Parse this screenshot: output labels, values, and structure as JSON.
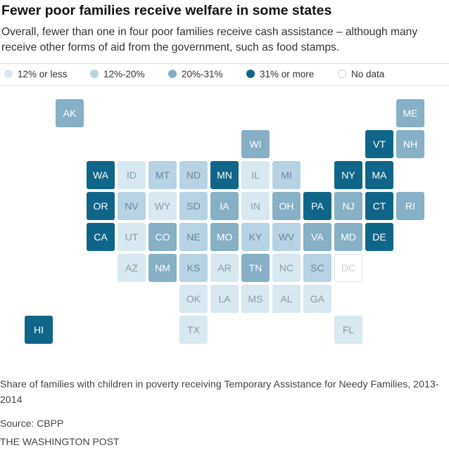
{
  "title": "Fewer poor families receive welfare in some states",
  "subtitle": "Overall, fewer than one in four poor families receive cash assistance – although many receive other forms of aid from the government, such as food stamps.",
  "note": "Share of families with children in poverty receiving Temporary Assistance for Needy Families, 2013-2014",
  "source": "Source: CBPP",
  "credit": "THE WASHINGTON POST",
  "chart_data": {
    "type": "heatmap",
    "title": "Fewer poor families receive welfare in some states",
    "legend": {
      "placement": "top",
      "items": [
        {
          "key": "lt12",
          "label": "12% or less",
          "color": "#d7e8f1"
        },
        {
          "key": "12to20",
          "label": "12%-20%",
          "color": "#b6d3e3"
        },
        {
          "key": "20to31",
          "label": "20%-31%",
          "color": "#85b0c6"
        },
        {
          "key": "gt31",
          "label": "31% or more",
          "color": "#0f6688"
        },
        {
          "key": "nodata",
          "label": "No data",
          "color": "#ffffff"
        }
      ]
    },
    "states": [
      {
        "abbr": "AK",
        "col": 2,
        "row": 0,
        "bin": "20to31"
      },
      {
        "abbr": "ME",
        "col": 13,
        "row": 0,
        "bin": "20to31"
      },
      {
        "abbr": "WI",
        "col": 8,
        "row": 1,
        "bin": "20to31"
      },
      {
        "abbr": "VT",
        "col": 12,
        "row": 1,
        "bin": "gt31"
      },
      {
        "abbr": "NH",
        "col": 13,
        "row": 1,
        "bin": "20to31"
      },
      {
        "abbr": "WA",
        "col": 3,
        "row": 2,
        "bin": "gt31"
      },
      {
        "abbr": "ID",
        "col": 4,
        "row": 2,
        "bin": "lt12"
      },
      {
        "abbr": "MT",
        "col": 5,
        "row": 2,
        "bin": "12to20"
      },
      {
        "abbr": "ND",
        "col": 6,
        "row": 2,
        "bin": "12to20"
      },
      {
        "abbr": "MN",
        "col": 7,
        "row": 2,
        "bin": "gt31"
      },
      {
        "abbr": "IL",
        "col": 8,
        "row": 2,
        "bin": "lt12"
      },
      {
        "abbr": "MI",
        "col": 9,
        "row": 2,
        "bin": "12to20"
      },
      {
        "abbr": "NY",
        "col": 11,
        "row": 2,
        "bin": "gt31"
      },
      {
        "abbr": "MA",
        "col": 12,
        "row": 2,
        "bin": "gt31"
      },
      {
        "abbr": "OR",
        "col": 3,
        "row": 3,
        "bin": "gt31"
      },
      {
        "abbr": "NV",
        "col": 4,
        "row": 3,
        "bin": "12to20"
      },
      {
        "abbr": "WY",
        "col": 5,
        "row": 3,
        "bin": "lt12"
      },
      {
        "abbr": "SD",
        "col": 6,
        "row": 3,
        "bin": "12to20"
      },
      {
        "abbr": "IA",
        "col": 7,
        "row": 3,
        "bin": "20to31"
      },
      {
        "abbr": "IN",
        "col": 8,
        "row": 3,
        "bin": "lt12"
      },
      {
        "abbr": "OH",
        "col": 9,
        "row": 3,
        "bin": "20to31"
      },
      {
        "abbr": "PA",
        "col": 10,
        "row": 3,
        "bin": "gt31"
      },
      {
        "abbr": "NJ",
        "col": 11,
        "row": 3,
        "bin": "20to31"
      },
      {
        "abbr": "CT",
        "col": 12,
        "row": 3,
        "bin": "gt31"
      },
      {
        "abbr": "RI",
        "col": 13,
        "row": 3,
        "bin": "20to31"
      },
      {
        "abbr": "CA",
        "col": 3,
        "row": 4,
        "bin": "gt31"
      },
      {
        "abbr": "UT",
        "col": 4,
        "row": 4,
        "bin": "lt12"
      },
      {
        "abbr": "CO",
        "col": 5,
        "row": 4,
        "bin": "20to31"
      },
      {
        "abbr": "NE",
        "col": 6,
        "row": 4,
        "bin": "12to20"
      },
      {
        "abbr": "MO",
        "col": 7,
        "row": 4,
        "bin": "20to31"
      },
      {
        "abbr": "KY",
        "col": 8,
        "row": 4,
        "bin": "12to20"
      },
      {
        "abbr": "WV",
        "col": 9,
        "row": 4,
        "bin": "12to20"
      },
      {
        "abbr": "VA",
        "col": 10,
        "row": 4,
        "bin": "20to31"
      },
      {
        "abbr": "MD",
        "col": 11,
        "row": 4,
        "bin": "20to31"
      },
      {
        "abbr": "DE",
        "col": 12,
        "row": 4,
        "bin": "gt31"
      },
      {
        "abbr": "AZ",
        "col": 4,
        "row": 5,
        "bin": "lt12"
      },
      {
        "abbr": "NM",
        "col": 5,
        "row": 5,
        "bin": "20to31"
      },
      {
        "abbr": "KS",
        "col": 6,
        "row": 5,
        "bin": "12to20"
      },
      {
        "abbr": "AR",
        "col": 7,
        "row": 5,
        "bin": "lt12"
      },
      {
        "abbr": "TN",
        "col": 8,
        "row": 5,
        "bin": "20to31"
      },
      {
        "abbr": "NC",
        "col": 9,
        "row": 5,
        "bin": "lt12"
      },
      {
        "abbr": "SC",
        "col": 10,
        "row": 5,
        "bin": "12to20"
      },
      {
        "abbr": "DC",
        "col": 11,
        "row": 5,
        "bin": "nodata"
      },
      {
        "abbr": "OK",
        "col": 6,
        "row": 6,
        "bin": "lt12"
      },
      {
        "abbr": "LA",
        "col": 7,
        "row": 6,
        "bin": "lt12"
      },
      {
        "abbr": "MS",
        "col": 8,
        "row": 6,
        "bin": "lt12"
      },
      {
        "abbr": "AL",
        "col": 9,
        "row": 6,
        "bin": "lt12"
      },
      {
        "abbr": "GA",
        "col": 10,
        "row": 6,
        "bin": "lt12"
      },
      {
        "abbr": "HI",
        "col": 1,
        "row": 7,
        "bin": "gt31"
      },
      {
        "abbr": "TX",
        "col": 6,
        "row": 7,
        "bin": "lt12"
      },
      {
        "abbr": "FL",
        "col": 11,
        "row": 7,
        "bin": "lt12"
      }
    ]
  }
}
